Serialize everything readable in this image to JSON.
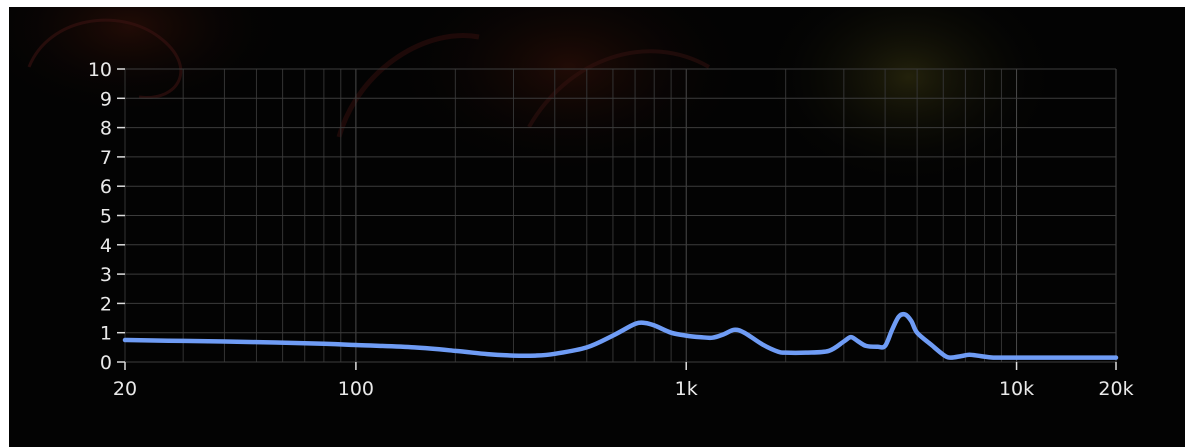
{
  "chart_data": {
    "type": "line",
    "x_scale": "log",
    "xlim": [
      20,
      20000
    ],
    "ylim": [
      0,
      10
    ],
    "grid": true,
    "x_ticks": [
      {
        "value": 20,
        "label": "20"
      },
      {
        "value": 100,
        "label": "100"
      },
      {
        "value": 1000,
        "label": "1k"
      },
      {
        "value": 10000,
        "label": "10k"
      },
      {
        "value": 20000,
        "label": "20k"
      }
    ],
    "y_ticks": [
      {
        "value": 0,
        "label": "0"
      },
      {
        "value": 1,
        "label": "1"
      },
      {
        "value": 2,
        "label": "2"
      },
      {
        "value": 3,
        "label": "3"
      },
      {
        "value": 4,
        "label": "4"
      },
      {
        "value": 5,
        "label": "5"
      },
      {
        "value": 6,
        "label": "6"
      },
      {
        "value": 7,
        "label": "7"
      },
      {
        "value": 8,
        "label": "8"
      },
      {
        "value": 9,
        "label": "9"
      },
      {
        "value": 10,
        "label": "10"
      }
    ],
    "series": [
      {
        "color": "#6f9cf5",
        "points": [
          [
            20,
            0.75
          ],
          [
            30,
            0.72
          ],
          [
            50,
            0.68
          ],
          [
            80,
            0.62
          ],
          [
            100,
            0.58
          ],
          [
            150,
            0.5
          ],
          [
            200,
            0.38
          ],
          [
            250,
            0.27
          ],
          [
            300,
            0.22
          ],
          [
            350,
            0.22
          ],
          [
            400,
            0.28
          ],
          [
            500,
            0.5
          ],
          [
            600,
            0.9
          ],
          [
            700,
            1.3
          ],
          [
            750,
            1.33
          ],
          [
            800,
            1.25
          ],
          [
            900,
            1.0
          ],
          [
            1000,
            0.9
          ],
          [
            1100,
            0.85
          ],
          [
            1200,
            0.83
          ],
          [
            1300,
            0.95
          ],
          [
            1400,
            1.1
          ],
          [
            1500,
            1.0
          ],
          [
            1700,
            0.6
          ],
          [
            1900,
            0.35
          ],
          [
            2000,
            0.32
          ],
          [
            2300,
            0.32
          ],
          [
            2700,
            0.38
          ],
          [
            3000,
            0.7
          ],
          [
            3150,
            0.85
          ],
          [
            3300,
            0.72
          ],
          [
            3500,
            0.55
          ],
          [
            3800,
            0.52
          ],
          [
            4000,
            0.55
          ],
          [
            4200,
            1.1
          ],
          [
            4400,
            1.55
          ],
          [
            4600,
            1.62
          ],
          [
            4800,
            1.4
          ],
          [
            5000,
            1.0
          ],
          [
            5500,
            0.6
          ],
          [
            6000,
            0.25
          ],
          [
            6300,
            0.15
          ],
          [
            6800,
            0.2
          ],
          [
            7200,
            0.25
          ],
          [
            7800,
            0.2
          ],
          [
            8500,
            0.15
          ],
          [
            10000,
            0.15
          ],
          [
            15000,
            0.15
          ],
          [
            20000,
            0.15
          ]
        ]
      }
    ]
  }
}
